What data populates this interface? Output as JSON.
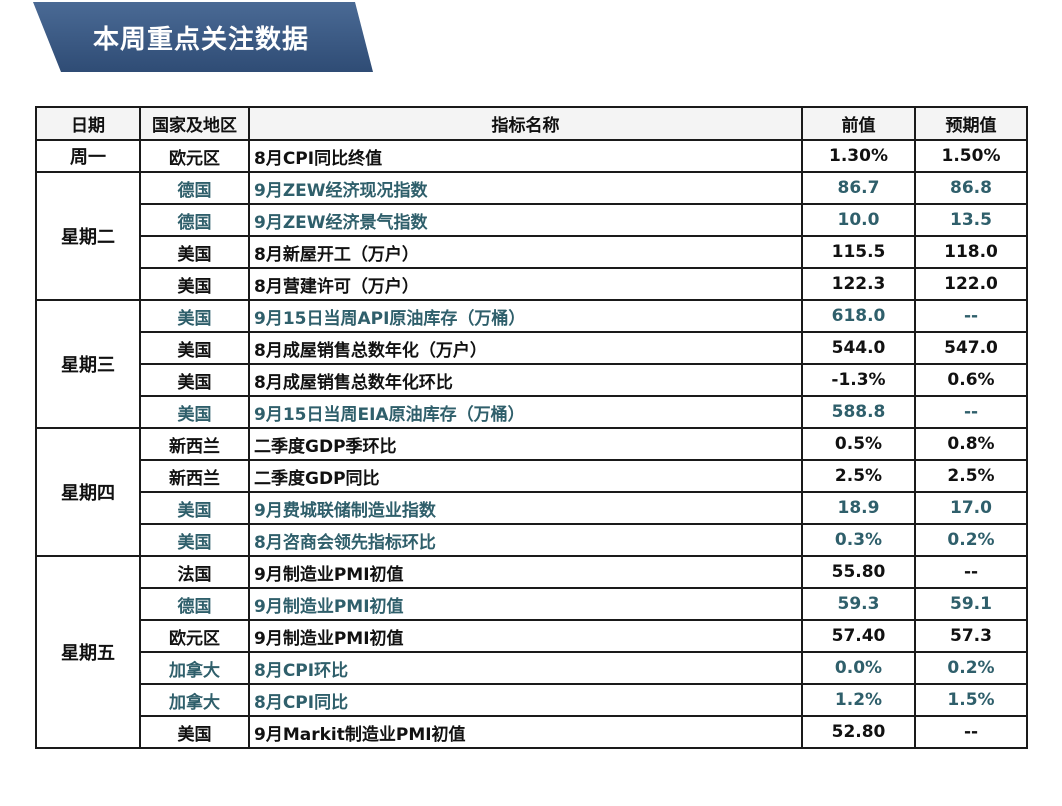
{
  "title": "本周重点关注数据",
  "colors": {
    "banner": "#3d5a80",
    "teal_text": "#2f5f6b",
    "text": "#111111"
  },
  "headers": [
    "日期",
    "国家及地区",
    "指标名称",
    "前值",
    "预期值"
  ],
  "groups": [
    {
      "day": "周一",
      "rows": [
        {
          "country": "欧元区",
          "indicator": "8月CPI同比终值",
          "prev": "1.30%",
          "exp": "1.50%",
          "teal": false
        }
      ]
    },
    {
      "day": "星期二",
      "rows": [
        {
          "country": "德国",
          "indicator": "9月ZEW经济现况指数",
          "prev": "86.7",
          "exp": "86.8",
          "teal": true
        },
        {
          "country": "德国",
          "indicator": "9月ZEW经济景气指数",
          "prev": "10.0",
          "exp": "13.5",
          "teal": true
        },
        {
          "country": "美国",
          "indicator": "8月新屋开工（万户）",
          "prev": "115.5",
          "exp": "118.0",
          "teal": false
        },
        {
          "country": "美国",
          "indicator": "8月营建许可（万户）",
          "prev": "122.3",
          "exp": "122.0",
          "teal": false
        }
      ]
    },
    {
      "day": "星期三",
      "rows": [
        {
          "country": "美国",
          "indicator": "9月15日当周API原油库存（万桶）",
          "prev": "618.0",
          "exp": "--",
          "teal": true
        },
        {
          "country": "美国",
          "indicator": "8月成屋销售总数年化（万户）",
          "prev": "544.0",
          "exp": "547.0",
          "teal": false
        },
        {
          "country": "美国",
          "indicator": "8月成屋销售总数年化环比",
          "prev": "-1.3%",
          "exp": "0.6%",
          "teal": false
        },
        {
          "country": "美国",
          "indicator": "9月15日当周EIA原油库存（万桶）",
          "prev": "588.8",
          "exp": "--",
          "teal": true
        }
      ]
    },
    {
      "day": "星期四",
      "rows": [
        {
          "country": "新西兰",
          "indicator": "二季度GDP季环比",
          "prev": "0.5%",
          "exp": "0.8%",
          "teal": false
        },
        {
          "country": "新西兰",
          "indicator": "二季度GDP同比",
          "prev": "2.5%",
          "exp": "2.5%",
          "teal": false
        },
        {
          "country": "美国",
          "indicator": "9月费城联储制造业指数",
          "prev": "18.9",
          "exp": "17.0",
          "teal": true
        },
        {
          "country": "美国",
          "indicator": "8月咨商会领先指标环比",
          "prev": "0.3%",
          "exp": "0.2%",
          "teal": true
        }
      ]
    },
    {
      "day": "星期五",
      "rows": [
        {
          "country": "法国",
          "indicator": "9月制造业PMI初值",
          "prev": "55.80",
          "exp": "--",
          "teal": false
        },
        {
          "country": "德国",
          "indicator": "9月制造业PMI初值",
          "prev": "59.3",
          "exp": "59.1",
          "teal": true
        },
        {
          "country": "欧元区",
          "indicator": "9月制造业PMI初值",
          "prev": "57.40",
          "exp": "57.3",
          "teal": false
        },
        {
          "country": "加拿大",
          "indicator": "8月CPI环比",
          "prev": "0.0%",
          "exp": "0.2%",
          "teal": true
        },
        {
          "country": "加拿大",
          "indicator": "8月CPI同比",
          "prev": "1.2%",
          "exp": "1.5%",
          "teal": true
        },
        {
          "country": "美国",
          "indicator": "9月Markit制造业PMI初值",
          "prev": "52.80",
          "exp": "--",
          "teal": false
        }
      ]
    }
  ]
}
